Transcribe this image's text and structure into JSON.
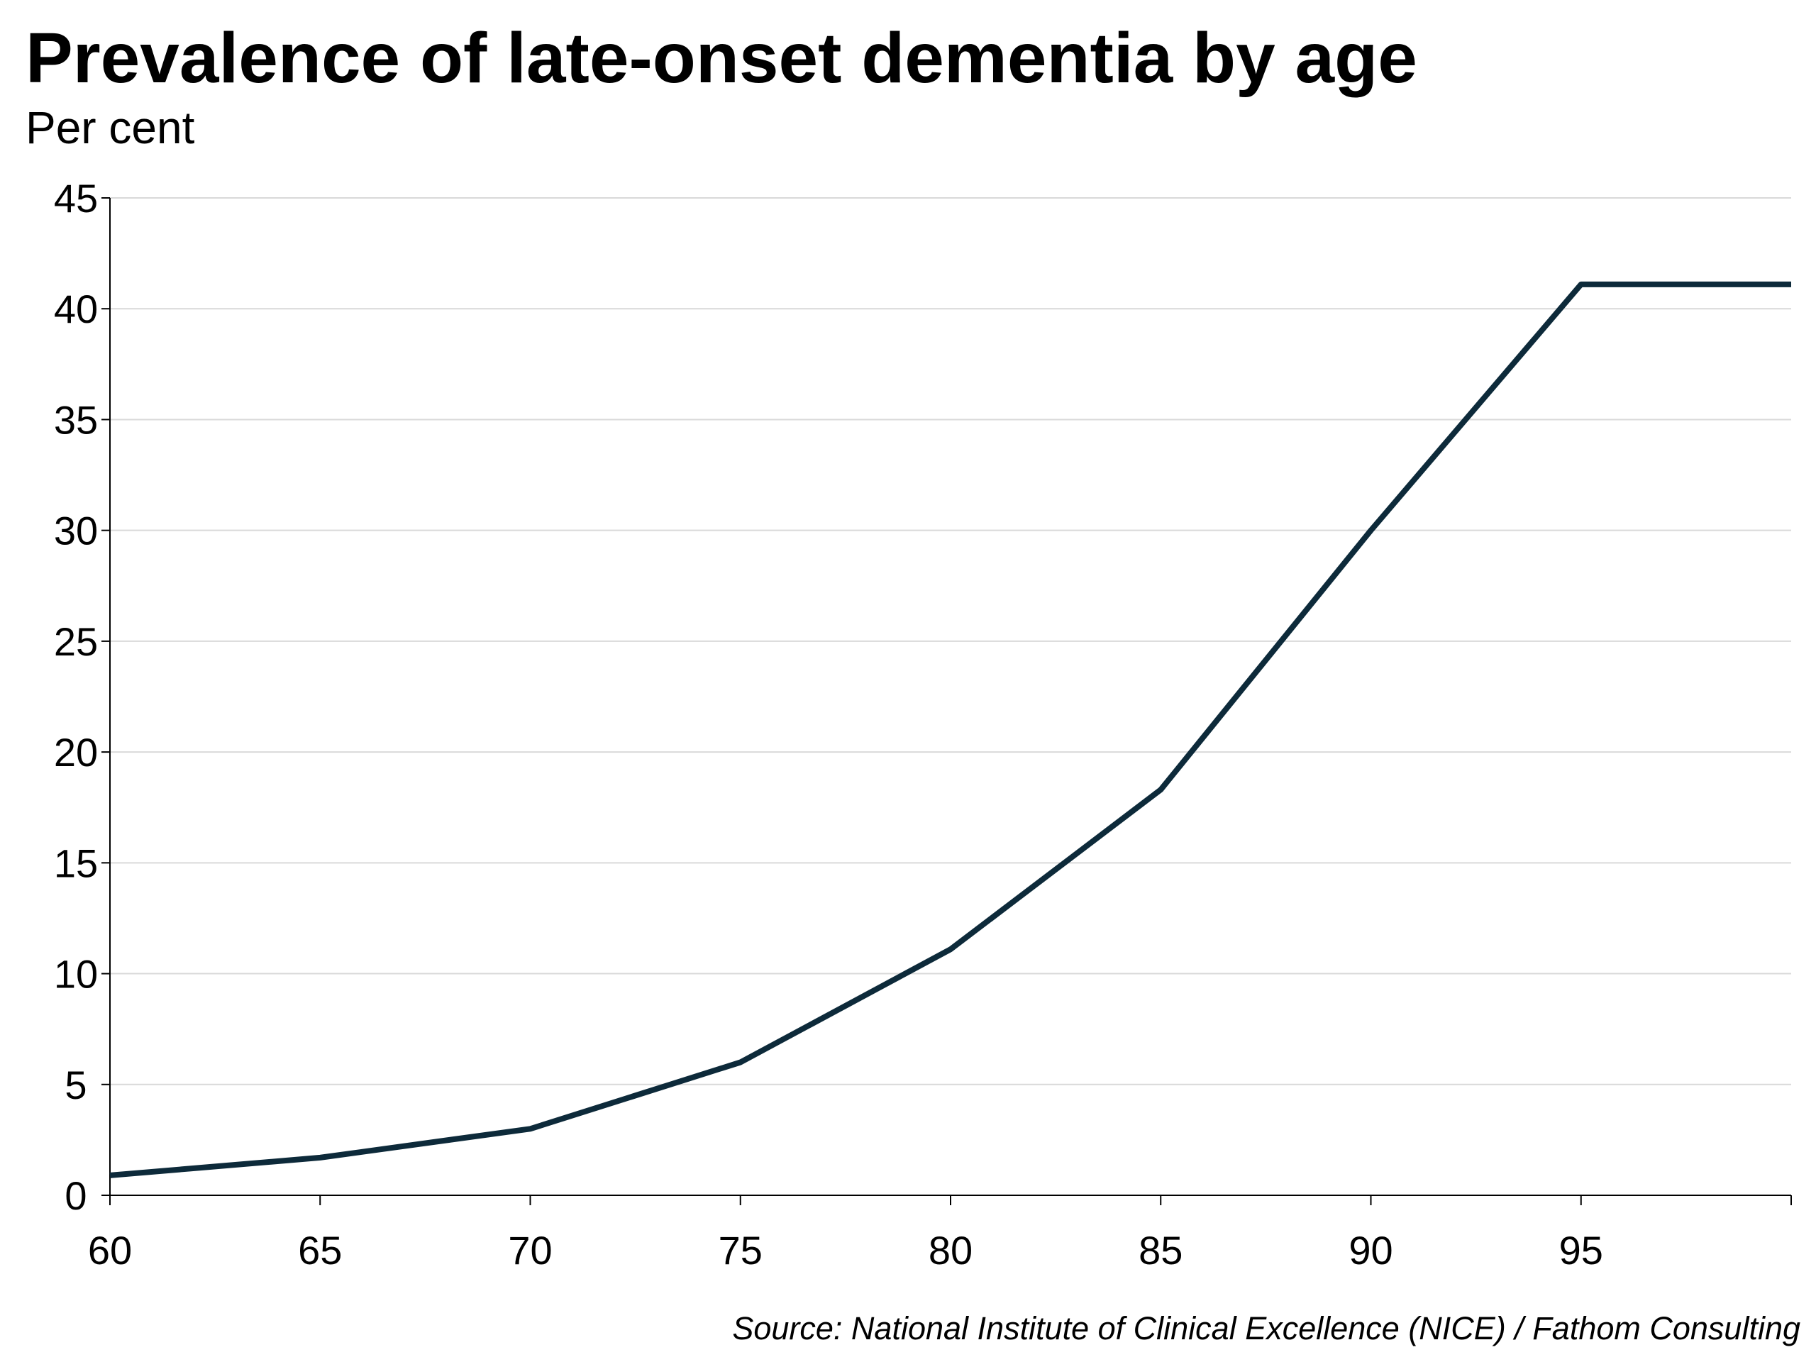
{
  "chart_data": {
    "type": "line",
    "title": "Prevalence of late-onset dementia by age",
    "subtitle": "Per cent",
    "source": "Source: National Institute of Clinical Excellence (NICE) / Fathom Consulting",
    "xlabel": "",
    "ylabel": "",
    "x_ticks": [
      "60",
      "65",
      "70",
      "75",
      "80",
      "85",
      "90",
      "95"
    ],
    "y_ticks": [
      "0",
      "5",
      "10",
      "15",
      "20",
      "25",
      "30",
      "35",
      "40",
      "45"
    ],
    "xlim": [
      60,
      100
    ],
    "ylim": [
      0,
      45
    ],
    "grid": true,
    "legend": "none",
    "line_color": "#0d2a3a",
    "grid_color": "#d9d9d9",
    "series": [
      {
        "x": [
          60,
          65,
          70,
          75,
          80,
          85,
          90,
          95,
          100
        ],
        "values": [
          0.9,
          1.7,
          3.0,
          6.0,
          11.1,
          18.3,
          30.0,
          41.1,
          41.1
        ]
      }
    ]
  }
}
